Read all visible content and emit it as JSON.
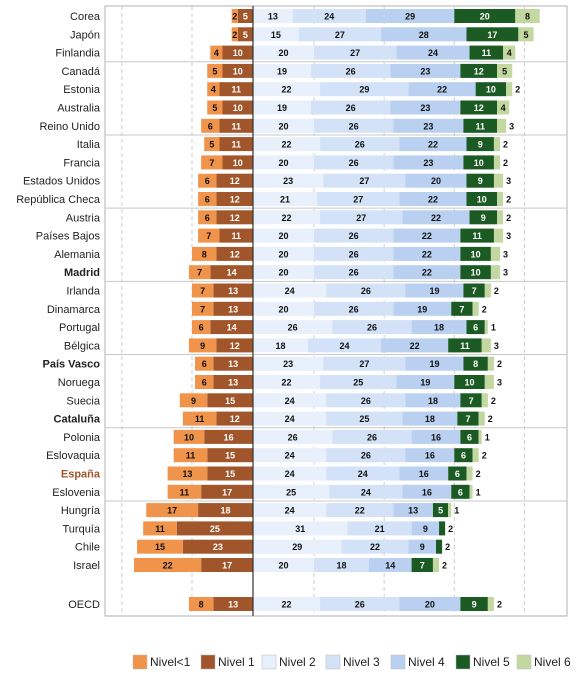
{
  "chart_data": {
    "type": "bar",
    "stacked": true,
    "diverging": true,
    "orientation": "horizontal",
    "grid": true,
    "legend_position": "bottom",
    "legend": [
      {
        "key": "lt1",
        "label": "Nivel<1",
        "color": "#f0944b"
      },
      {
        "key": "n1",
        "label": "Nivel 1",
        "color": "#a0552a"
      },
      {
        "key": "n2",
        "label": "Nivel 2",
        "color": "#e8f0fb"
      },
      {
        "key": "n3",
        "label": "Nivel 3",
        "color": "#d3e2f6"
      },
      {
        "key": "n4",
        "label": "Nivel 4",
        "color": "#b9d0f0"
      },
      {
        "key": "n5",
        "label": "Nivel 5",
        "color": "#1c5a24"
      },
      {
        "key": "n6",
        "label": "Nivel 6",
        "color": "#c3d7a0"
      }
    ],
    "rows": [
      {
        "name": "Corea",
        "values": [
          2,
          5,
          13,
          24,
          29,
          20,
          8
        ]
      },
      {
        "name": "Japón",
        "values": [
          2,
          5,
          15,
          27,
          28,
          17,
          5
        ]
      },
      {
        "name": "Finlandia",
        "values": [
          4,
          10,
          20,
          27,
          24,
          11,
          4
        ]
      },
      {
        "name": "Canadá",
        "values": [
          5,
          10,
          19,
          26,
          23,
          12,
          5
        ]
      },
      {
        "name": "Estonia",
        "values": [
          4,
          11,
          22,
          29,
          22,
          10,
          2
        ]
      },
      {
        "name": "Australia",
        "values": [
          5,
          10,
          19,
          26,
          23,
          12,
          4
        ]
      },
      {
        "name": "Reino Unido",
        "values": [
          6,
          11,
          20,
          26,
          23,
          11,
          3
        ]
      },
      {
        "name": "Italia",
        "values": [
          5,
          11,
          22,
          26,
          22,
          9,
          2
        ]
      },
      {
        "name": "Francia",
        "values": [
          7,
          10,
          20,
          26,
          23,
          10,
          2
        ]
      },
      {
        "name": "Estados Unidos",
        "values": [
          6,
          12,
          23,
          27,
          20,
          9,
          3
        ]
      },
      {
        "name": "República Checa",
        "values": [
          6,
          12,
          21,
          27,
          22,
          10,
          2
        ]
      },
      {
        "name": "Austria",
        "values": [
          6,
          12,
          22,
          27,
          22,
          9,
          2
        ]
      },
      {
        "name": "Países Bajos",
        "values": [
          7,
          11,
          20,
          26,
          22,
          11,
          3
        ]
      },
      {
        "name": "Alemania",
        "values": [
          8,
          12,
          20,
          26,
          22,
          10,
          3
        ]
      },
      {
        "name": "Madrid",
        "values": [
          7,
          14,
          20,
          26,
          22,
          10,
          3
        ],
        "bold": true
      },
      {
        "name": "Irlanda",
        "values": [
          7,
          13,
          24,
          26,
          19,
          7,
          2
        ]
      },
      {
        "name": "Dinamarca",
        "values": [
          7,
          13,
          20,
          26,
          19,
          7,
          2
        ]
      },
      {
        "name": "Portugal",
        "values": [
          6,
          14,
          26,
          26,
          18,
          6,
          1
        ]
      },
      {
        "name": "Bélgica",
        "values": [
          9,
          12,
          18,
          24,
          22,
          11,
          3
        ]
      },
      {
        "name": "País Vasco",
        "values": [
          6,
          13,
          23,
          27,
          19,
          8,
          2
        ],
        "bold": true
      },
      {
        "name": "Noruega",
        "values": [
          6,
          13,
          22,
          25,
          19,
          10,
          3
        ]
      },
      {
        "name": "Suecia",
        "values": [
          9,
          15,
          24,
          26,
          18,
          7,
          2
        ]
      },
      {
        "name": "Cataluña",
        "values": [
          11,
          12,
          24,
          25,
          18,
          7,
          2
        ],
        "bold": true
      },
      {
        "name": "Polonia",
        "values": [
          10,
          16,
          26,
          26,
          16,
          6,
          1
        ]
      },
      {
        "name": "Eslovaquia",
        "values": [
          11,
          15,
          24,
          26,
          16,
          6,
          2
        ]
      },
      {
        "name": "España",
        "values": [
          13,
          15,
          24,
          24,
          16,
          6,
          2
        ],
        "bold": true,
        "highlight": "#a0552a"
      },
      {
        "name": "Eslovenia",
        "values": [
          11,
          17,
          25,
          24,
          16,
          6,
          1
        ]
      },
      {
        "name": "Hungría",
        "values": [
          17,
          18,
          24,
          22,
          13,
          5,
          1
        ]
      },
      {
        "name": "Turquía",
        "values": [
          11,
          25,
          31,
          21,
          9,
          2,
          0
        ]
      },
      {
        "name": "Chile",
        "values": [
          15,
          23,
          29,
          22,
          9,
          2,
          0
        ]
      },
      {
        "name": "Israel",
        "values": [
          22,
          17,
          20,
          18,
          14,
          7,
          2
        ]
      },
      {
        "name": "OECD",
        "values": [
          8,
          13,
          22,
          26,
          20,
          9,
          2
        ],
        "separate": true
      }
    ]
  }
}
